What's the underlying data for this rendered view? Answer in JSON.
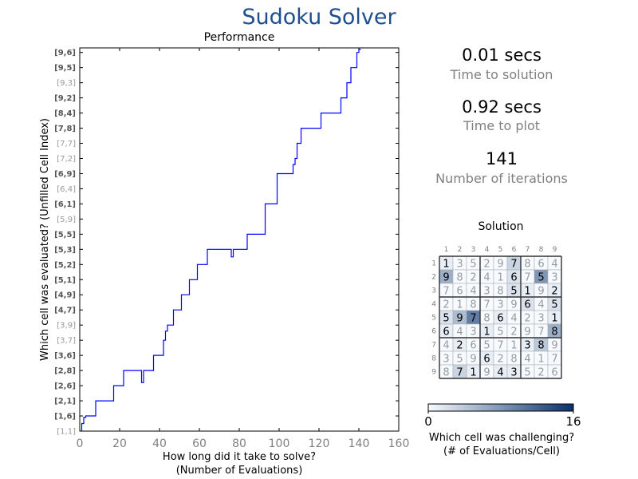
{
  "app_title": "Sudoku Solver",
  "stats": [
    {
      "value": "0.01 secs",
      "label": "Time to solution"
    },
    {
      "value": "0.92 secs",
      "label": "Time to plot"
    },
    {
      "value": "141",
      "label": "Number of iterations"
    }
  ],
  "chart_data": [
    {
      "type": "line",
      "title": "Performance",
      "xlabel_lines": [
        "How long did it take to solve?",
        "(Number of Evaluations)"
      ],
      "ylabel": "Which cell was evaluated? (Unfilled Cell Index)",
      "xlim": [
        0,
        160
      ],
      "xticks": [
        0,
        20,
        40,
        60,
        80,
        100,
        120,
        140,
        160
      ],
      "ylim": [
        0,
        25.3
      ],
      "y_categories": [
        "[1,1]",
        "[1,6]",
        "[2,1]",
        "[2,6]",
        "[2,8]",
        "[3,6]",
        "[3,7]",
        "[3,9]",
        "[4,7]",
        "[4,9]",
        "[5,1]",
        "[5,2]",
        "[5,3]",
        "[5,5]",
        "[5,9]",
        "[6,1]",
        "[6,4]",
        "[6,9]",
        "[7,2]",
        "[7,7]",
        "[7,8]",
        "[8,4]",
        "[9,2]",
        "[9,3]",
        "[9,5]",
        "[9,6]"
      ],
      "y_bold": [
        false,
        true,
        true,
        true,
        true,
        true,
        false,
        false,
        true,
        true,
        true,
        true,
        true,
        true,
        false,
        true,
        false,
        true,
        false,
        false,
        true,
        true,
        true,
        false,
        true,
        true
      ],
      "line_color": "#0000ff",
      "series": [
        {
          "x": [
            0,
            1,
            1,
            2,
            2,
            3,
            3,
            8,
            8,
            16,
            16,
            17,
            17,
            20,
            20,
            22,
            22,
            23,
            23,
            31,
            31,
            32,
            32,
            33,
            33,
            37,
            37,
            38,
            38,
            42,
            42,
            43,
            43,
            44,
            44,
            47,
            47,
            48,
            48,
            51,
            51,
            55,
            55,
            59,
            59,
            64,
            64,
            69,
            69,
            76,
            76,
            77,
            77,
            79,
            79,
            84,
            84,
            90,
            90,
            93,
            93,
            99,
            99,
            107,
            107,
            108,
            108,
            109,
            109,
            111,
            111,
            118,
            118,
            121,
            121,
            126,
            126,
            131,
            131,
            134,
            134,
            136,
            136,
            139,
            139,
            140,
            140,
            141
          ],
          "y": [
            0,
            0,
            0.5,
            0.5,
            0.9,
            0.9,
            1,
            1,
            2,
            2,
            2,
            2,
            3,
            3,
            3,
            3,
            4,
            4,
            4,
            4,
            3.2,
            3.2,
            4,
            4,
            4,
            4,
            5,
            5,
            5,
            5,
            6,
            6,
            6.6,
            6.6,
            7,
            7,
            8,
            8,
            8,
            8,
            9,
            9,
            10,
            10,
            11,
            11,
            12,
            12,
            12,
            12,
            11.5,
            11.5,
            12,
            12,
            12,
            12,
            13,
            13,
            13,
            13,
            15,
            15,
            17,
            17,
            17.6,
            17.6,
            18,
            18,
            19,
            19,
            20,
            20,
            20,
            20,
            21,
            21,
            21,
            21,
            22,
            22,
            23,
            23,
            24,
            24,
            25,
            25,
            25.2,
            25.2
          ]
        }
      ]
    },
    {
      "type": "heatmap",
      "title": "Solution",
      "col_labels": [
        "1",
        "2",
        "3",
        "4",
        "5",
        "6",
        "7",
        "8",
        "9"
      ],
      "row_labels": [
        "1",
        "2",
        "3",
        "4",
        "5",
        "6",
        "7",
        "8",
        "9"
      ],
      "grid": [
        [
          1,
          3,
          5,
          2,
          9,
          7,
          8,
          6,
          4
        ],
        [
          9,
          8,
          2,
          4,
          1,
          6,
          7,
          5,
          3
        ],
        [
          7,
          6,
          4,
          3,
          8,
          5,
          1,
          9,
          2
        ],
        [
          2,
          1,
          8,
          7,
          3,
          9,
          6,
          4,
          5
        ],
        [
          5,
          9,
          7,
          8,
          6,
          4,
          2,
          3,
          1
        ],
        [
          6,
          4,
          3,
          1,
          5,
          2,
          9,
          7,
          8
        ],
        [
          4,
          2,
          6,
          5,
          7,
          1,
          3,
          8,
          9
        ],
        [
          3,
          5,
          9,
          6,
          2,
          8,
          4,
          1,
          7
        ],
        [
          8,
          7,
          1,
          9,
          4,
          3,
          5,
          2,
          6
        ]
      ],
      "evaluations": [
        [
          1,
          0,
          0,
          0,
          0,
          3,
          0,
          0,
          0
        ],
        [
          6,
          0,
          0,
          0,
          0,
          2,
          0,
          8,
          0
        ],
        [
          0,
          0,
          0,
          0,
          0,
          2,
          1,
          0,
          1
        ],
        [
          0,
          0,
          0,
          0,
          0,
          0,
          2,
          0,
          2
        ],
        [
          2,
          5,
          10,
          0,
          1,
          0,
          0,
          0,
          1
        ],
        [
          1,
          0,
          0,
          1,
          0,
          0,
          0,
          0,
          6
        ],
        [
          0,
          1,
          0,
          0,
          0,
          0,
          1,
          4,
          0
        ],
        [
          0,
          0,
          0,
          1,
          0,
          0,
          0,
          0,
          0
        ],
        [
          0,
          3,
          1,
          0,
          1,
          1,
          0,
          0,
          0
        ]
      ],
      "colorbar": {
        "min": 0,
        "max": 16,
        "label_lines": [
          "Which cell was challenging?",
          "(# of Evaluations/Cell)"
        ],
        "color_low": "#f7fbff",
        "color_high": "#08306b"
      }
    }
  ]
}
